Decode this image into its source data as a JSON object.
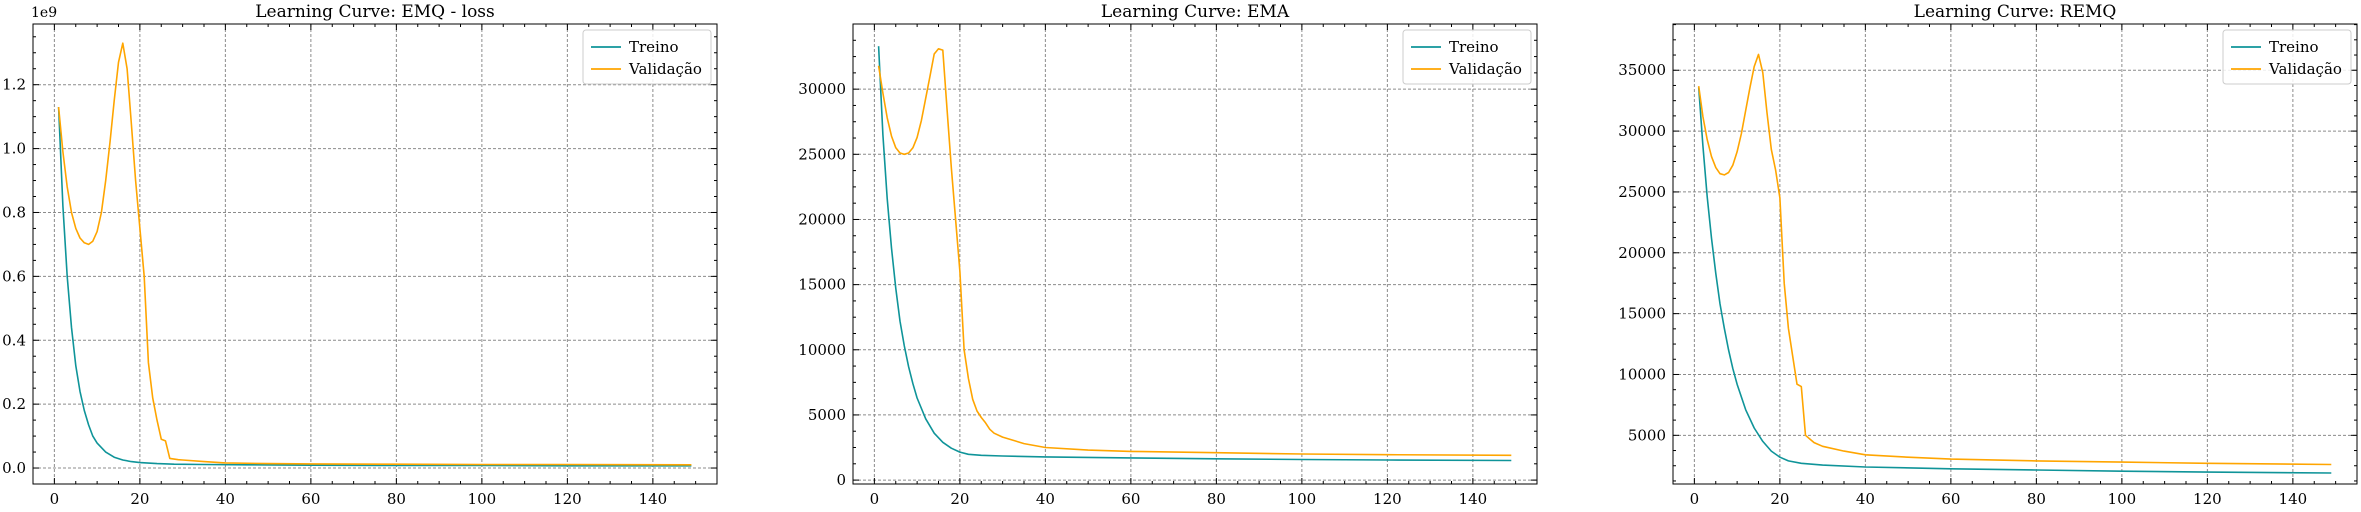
{
  "colors": {
    "train": "#0f9499",
    "val": "#ffa500",
    "grid": "#8c8c8c",
    "axis": "#000000"
  },
  "chart_data": [
    {
      "type": "line",
      "title": "Learning Curve: EMQ - loss",
      "offset_label": "1e9",
      "xlim": [
        -5,
        155
      ],
      "ylim": [
        -0.05,
        1.39
      ],
      "xticks": [
        0,
        20,
        40,
        60,
        80,
        100,
        120,
        140
      ],
      "yticks": [
        0.0,
        0.2,
        0.4,
        0.6,
        0.8,
        1.0,
        1.2
      ],
      "ytick_labels": [
        "0.0",
        "0.2",
        "0.4",
        "0.6",
        "0.8",
        "1.0",
        "1.2"
      ],
      "grid": true,
      "legend_position": "upper right",
      "series": [
        {
          "name": "Treino",
          "color": "#0f9499",
          "x": [
            1,
            2,
            3,
            4,
            5,
            6,
            7,
            8,
            9,
            10,
            12,
            14,
            16,
            18,
            20,
            24,
            28,
            35,
            45,
            60,
            80,
            100,
            120,
            149
          ],
          "y": [
            1.13,
            0.82,
            0.6,
            0.44,
            0.32,
            0.24,
            0.18,
            0.135,
            0.1,
            0.078,
            0.05,
            0.034,
            0.025,
            0.02,
            0.017,
            0.014,
            0.012,
            0.011,
            0.01,
            0.009,
            0.008,
            0.008,
            0.007,
            0.007
          ]
        },
        {
          "name": "Validação",
          "color": "#ffa500",
          "x": [
            1,
            2,
            3,
            4,
            5,
            6,
            7,
            8,
            9,
            10,
            11,
            12,
            13,
            14,
            15,
            16,
            17,
            18,
            19,
            20,
            21,
            22,
            23,
            24,
            25,
            26,
            27,
            28,
            29,
            30,
            35,
            40,
            50,
            60,
            80,
            100,
            120,
            149
          ],
          "y": [
            1.13,
            0.99,
            0.88,
            0.8,
            0.75,
            0.72,
            0.705,
            0.7,
            0.71,
            0.74,
            0.8,
            0.9,
            1.02,
            1.15,
            1.27,
            1.33,
            1.25,
            1.08,
            0.9,
            0.75,
            0.6,
            0.33,
            0.22,
            0.15,
            0.09,
            0.085,
            0.03,
            0.028,
            0.026,
            0.025,
            0.02,
            0.016,
            0.014,
            0.013,
            0.012,
            0.011,
            0.011,
            0.01
          ]
        }
      ]
    },
    {
      "type": "line",
      "title": "Learning Curve: EMA",
      "offset_label": "",
      "xlim": [
        -5,
        155
      ],
      "ylim": [
        -300,
        35000
      ],
      "xticks": [
        0,
        20,
        40,
        60,
        80,
        100,
        120,
        140
      ],
      "yticks": [
        0,
        5000,
        10000,
        15000,
        20000,
        25000,
        30000
      ],
      "ytick_labels": [
        "0",
        "5000",
        "10000",
        "15000",
        "20000",
        "25000",
        "30000"
      ],
      "grid": true,
      "legend_position": "upper right",
      "series": [
        {
          "name": "Treino",
          "color": "#0f9499",
          "x": [
            1,
            2,
            3,
            4,
            5,
            6,
            7,
            8,
            9,
            10,
            12,
            14,
            16,
            18,
            20,
            22,
            25,
            30,
            40,
            60,
            80,
            100,
            120,
            149
          ],
          "y": [
            33300,
            26500,
            21600,
            17800,
            14700,
            12200,
            10300,
            8700,
            7400,
            6300,
            4700,
            3600,
            2900,
            2450,
            2150,
            1980,
            1900,
            1850,
            1780,
            1700,
            1630,
            1580,
            1540,
            1500
          ]
        },
        {
          "name": "Validação",
          "color": "#ffa500",
          "x": [
            1,
            2,
            3,
            4,
            5,
            6,
            7,
            8,
            9,
            10,
            11,
            12,
            13,
            14,
            15,
            16,
            17,
            18,
            19,
            20,
            21,
            22,
            23,
            24,
            25,
            26,
            27,
            28,
            30,
            35,
            40,
            50,
            60,
            80,
            100,
            120,
            149
          ],
          "y": [
            31800,
            29700,
            27800,
            26400,
            25500,
            25100,
            25000,
            25100,
            25500,
            26300,
            27600,
            29300,
            31000,
            32700,
            33100,
            33000,
            28500,
            24000,
            20000,
            16000,
            10000,
            7800,
            6200,
            5300,
            4800,
            4400,
            3900,
            3600,
            3300,
            2800,
            2500,
            2300,
            2200,
            2100,
            2000,
            1950,
            1900
          ]
        }
      ]
    },
    {
      "type": "line",
      "title": "Learning Curve: REMQ",
      "offset_label": "",
      "xlim": [
        -5,
        155
      ],
      "ylim": [
        1000,
        38800
      ],
      "xticks": [
        0,
        20,
        40,
        60,
        80,
        100,
        120,
        140
      ],
      "yticks": [
        5000,
        10000,
        15000,
        20000,
        25000,
        30000,
        35000
      ],
      "ytick_labels": [
        "5000",
        "10000",
        "15000",
        "20000",
        "25000",
        "30000",
        "35000"
      ],
      "grid": true,
      "legend_position": "upper right",
      "series": [
        {
          "name": "Treino",
          "color": "#0f9499",
          "x": [
            1,
            2,
            3,
            4,
            5,
            6,
            7,
            8,
            9,
            10,
            12,
            14,
            16,
            18,
            20,
            22,
            25,
            30,
            40,
            60,
            80,
            100,
            120,
            149
          ],
          "y": [
            33600,
            28800,
            24600,
            21200,
            18300,
            15800,
            13800,
            12000,
            10500,
            9200,
            7100,
            5600,
            4500,
            3700,
            3200,
            2900,
            2700,
            2550,
            2400,
            2250,
            2150,
            2050,
            1980,
            1900
          ]
        },
        {
          "name": "Validação",
          "color": "#ffa500",
          "x": [
            1,
            2,
            3,
            4,
            5,
            6,
            7,
            8,
            9,
            10,
            11,
            12,
            13,
            14,
            15,
            16,
            17,
            18,
            19,
            20,
            21,
            22,
            23,
            24,
            25,
            26,
            27,
            28,
            30,
            35,
            40,
            50,
            60,
            80,
            100,
            120,
            149
          ],
          "y": [
            33700,
            31200,
            29300,
            27900,
            27000,
            26500,
            26400,
            26600,
            27200,
            28300,
            29800,
            31700,
            33600,
            35300,
            36300,
            34800,
            31500,
            28500,
            26800,
            24500,
            17500,
            13800,
            11500,
            9200,
            9000,
            5000,
            4700,
            4400,
            4100,
            3700,
            3400,
            3200,
            3050,
            2900,
            2800,
            2700,
            2600
          ]
        }
      ]
    }
  ]
}
